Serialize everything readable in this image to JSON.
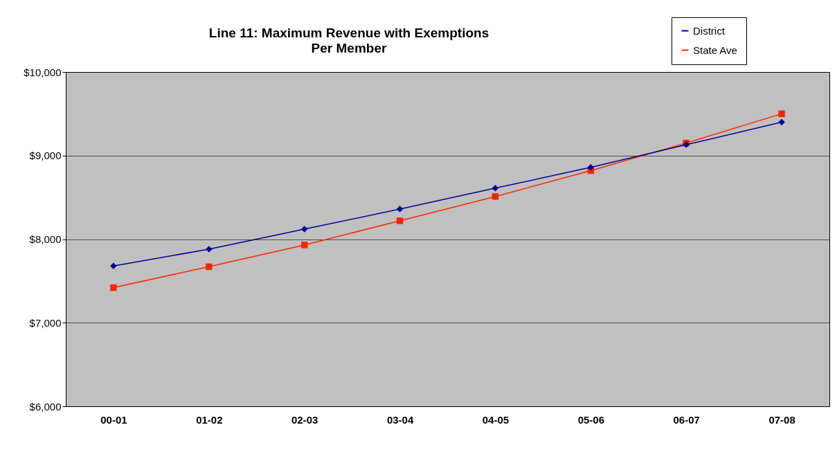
{
  "chart_data": {
    "type": "line",
    "title": "Line 11: Maximum Revenue with Exemptions\nPer Member",
    "categories": [
      "00-01",
      "01-02",
      "02-03",
      "03-04",
      "04-05",
      "05-06",
      "06-07",
      "07-08"
    ],
    "series": [
      {
        "name": "District",
        "color": "#000099",
        "marker": "diamond",
        "values": [
          7680,
          7880,
          8120,
          8360,
          8610,
          8860,
          9130,
          9400
        ]
      },
      {
        "name": "State Ave",
        "color": "#ff2200",
        "marker": "square",
        "values": [
          7420,
          7670,
          7930,
          8220,
          8510,
          8820,
          9150,
          9500
        ]
      }
    ],
    "ylim": [
      6000,
      10000
    ],
    "yticks": [
      {
        "value": 6000,
        "label": "$6,000"
      },
      {
        "value": 7000,
        "label": "$7,000"
      },
      {
        "value": 8000,
        "label": "$8,000"
      },
      {
        "value": 9000,
        "label": "$9,000"
      },
      {
        "value": 10000,
        "label": "$10,000"
      }
    ],
    "grid": "y",
    "legend": "top right"
  }
}
